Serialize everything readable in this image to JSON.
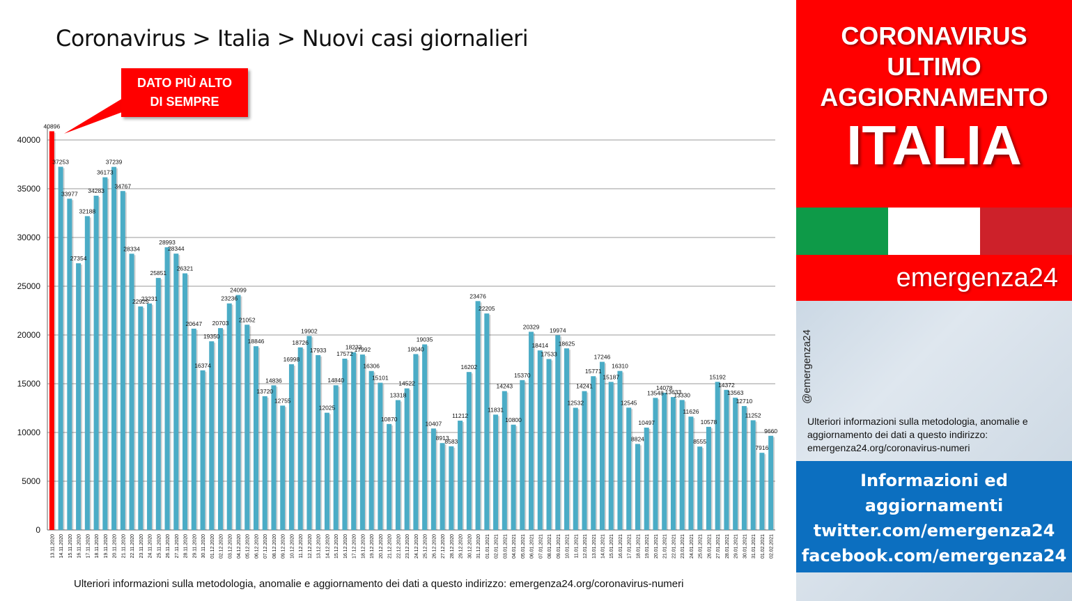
{
  "chart_title": "Coronavirus > Italia > Nuovi casi giornalieri",
  "callout": {
    "line1": "DATO PIÙ ALTO",
    "line2": "DI SEMPRE"
  },
  "bottom_note": "Ulteriori informazioni sulla metodologia, anomalie e aggiornamento dei dati a questo indirizzo: emergenza24.org/coronavirus-numeri",
  "side": {
    "title_line1": "CORONAVIRUS",
    "title_line2": "ULTIMO",
    "title_line3": "AGGIORNAMENTO",
    "country": "ITALIA",
    "brand": "emergenza24",
    "handle": "@emergenza24",
    "note": "Ulteriori informazioni sulla metodologia, anomalie e aggiornamento dei dati a questo indirizzo: emergenza24.org/coronavirus-numeri",
    "info_line1": "Informazioni ed",
    "info_line2": "aggiornamenti",
    "info_line3": "twitter.com/emergenza24",
    "info_line4": "facebook.com/emergenza24",
    "flag_colors": [
      "#0e9a48",
      "#ffffff",
      "#cd212a"
    ]
  },
  "colors": {
    "bar": "#4bacc6",
    "bar_highlight": "#ff0000",
    "accent_red": "#ff0000",
    "info_blue": "#0c6fc0"
  },
  "chart_data": {
    "type": "bar",
    "title": "Coronavirus > Italia > Nuovi casi giornalieri",
    "ylim": [
      0,
      40000
    ],
    "yticks": [
      0,
      5000,
      10000,
      15000,
      20000,
      25000,
      30000,
      35000,
      40000
    ],
    "grid": true,
    "highlight_index": 0,
    "categories": [
      "13.11.2020",
      "14.11.2020",
      "15.11.2020",
      "16.11.2020",
      "17.11.2020",
      "18.11.2020",
      "19.11.2020",
      "20.11.2020",
      "21.11.2020",
      "22.11.2020",
      "23.11.2020",
      "24.11.2020",
      "25.11.2020",
      "26.11.2020",
      "27.11.2020",
      "28.11.2020",
      "29.11.2020",
      "30.11.2020",
      "01.12.2020",
      "02.12.2020",
      "03.12.2020",
      "04.12.2020",
      "05.12.2020",
      "06.12.2020",
      "07.12.2020",
      "08.12.2020",
      "09.12.2020",
      "10.12.2020",
      "11.12.2020",
      "12.12.2020",
      "13.12.2020",
      "14.12.2020",
      "15.12.2020",
      "16.12.2020",
      "17.12.2020",
      "18.12.2020",
      "19.12.2020",
      "20.12.2020",
      "21.12.2020",
      "22.12.2020",
      "23.12.2020",
      "24.12.2020",
      "25.12.2020",
      "26.12.2020",
      "27.12.2020",
      "28.12.2020",
      "29.12.2020",
      "30.12.2020",
      "31.12.2020",
      "01.01.2021",
      "02.01.2021",
      "03.01.2021",
      "04.01.2021",
      "05.01.2021",
      "06.01.2021",
      "07.01.2021",
      "08.01.2021",
      "09.01.2021",
      "10.01.2021",
      "11.01.2021",
      "12.01.2021",
      "13.01.2021",
      "14.01.2021",
      "15.01.2021",
      "16.01.2021",
      "17.01.2021",
      "18.01.2021",
      "19.01.2021",
      "20.01.2021",
      "21.01.2021",
      "22.01.2021",
      "23.01.2021",
      "24.01.2021",
      "25.01.2021",
      "26.01.2021",
      "27.01.2021",
      "28.01.2021",
      "29.01.2021",
      "30.01.2021",
      "31.01.2021",
      "01.02.2021",
      "02.02.2021"
    ],
    "values": [
      40896,
      37253,
      33977,
      27354,
      32188,
      34283,
      36173,
      37239,
      34767,
      28334,
      22925,
      23231,
      25851,
      28993,
      28344,
      26321,
      20647,
      16374,
      19350,
      20703,
      23236,
      24099,
      21052,
      18846,
      13720,
      14836,
      12755,
      16998,
      18726,
      19902,
      17933,
      12025,
      14840,
      17572,
      18233,
      17992,
      16306,
      15101,
      10870,
      13318,
      14522,
      18040,
      19035,
      10407,
      8913,
      8583,
      11212,
      16202,
      23476,
      22205,
      11831,
      14243,
      10800,
      15370,
      20329,
      18414,
      17533,
      19974,
      18625,
      12532,
      14241,
      15771,
      17246,
      15187,
      16310,
      12545,
      8824,
      10497,
      13548,
      14078,
      13633,
      13330,
      11626,
      8555,
      10578,
      15192,
      14372,
      13563,
      12710,
      11252,
      7916,
      9660
    ]
  }
}
